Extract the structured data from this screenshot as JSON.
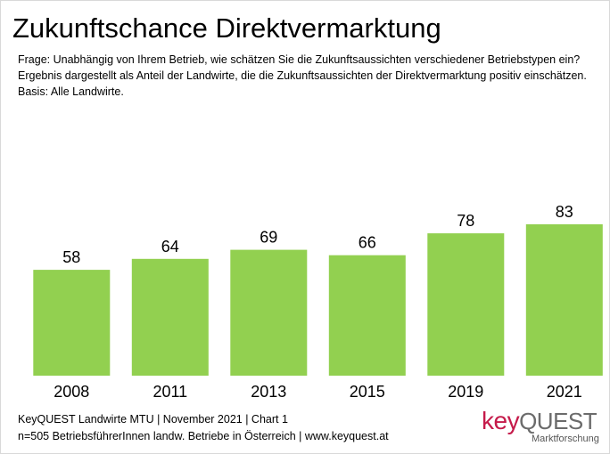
{
  "title": "Zukunftschance Direktvermarktung",
  "question": "Frage: Unabhängig von Ihrem Betrieb, wie schätzen Sie die Zukunftsaussichten verschiedener Betriebstypen ein?  Ergebnis dargestellt als Anteil der Landwirte, die die Zukunftsaussichten der Direktvermarktung positiv einschätzen.",
  "basis": "Basis: Alle Landwirte.",
  "footer": {
    "line1": "KeyQUEST Landwirte MTU | November 2021 | Chart 1",
    "line2": "n=505 BetriebsführerInnen landw. Betriebe in Österreich | www.keyquest.at"
  },
  "logo": {
    "part1": "key",
    "part2": "QUEST",
    "subtitle": "Marktforschung"
  },
  "colors": {
    "bar": "#92d050",
    "brand": "#c51a4a"
  },
  "chart_data": {
    "type": "bar",
    "title": "Zukunftschance Direktvermarktung",
    "xlabel": "",
    "ylabel": "",
    "categories": [
      "2008",
      "2011",
      "2013",
      "2015",
      "2019",
      "2021"
    ],
    "values": [
      58,
      64,
      69,
      66,
      78,
      83
    ],
    "ylim": [
      0,
      100
    ],
    "grid": false,
    "legend": "none"
  }
}
